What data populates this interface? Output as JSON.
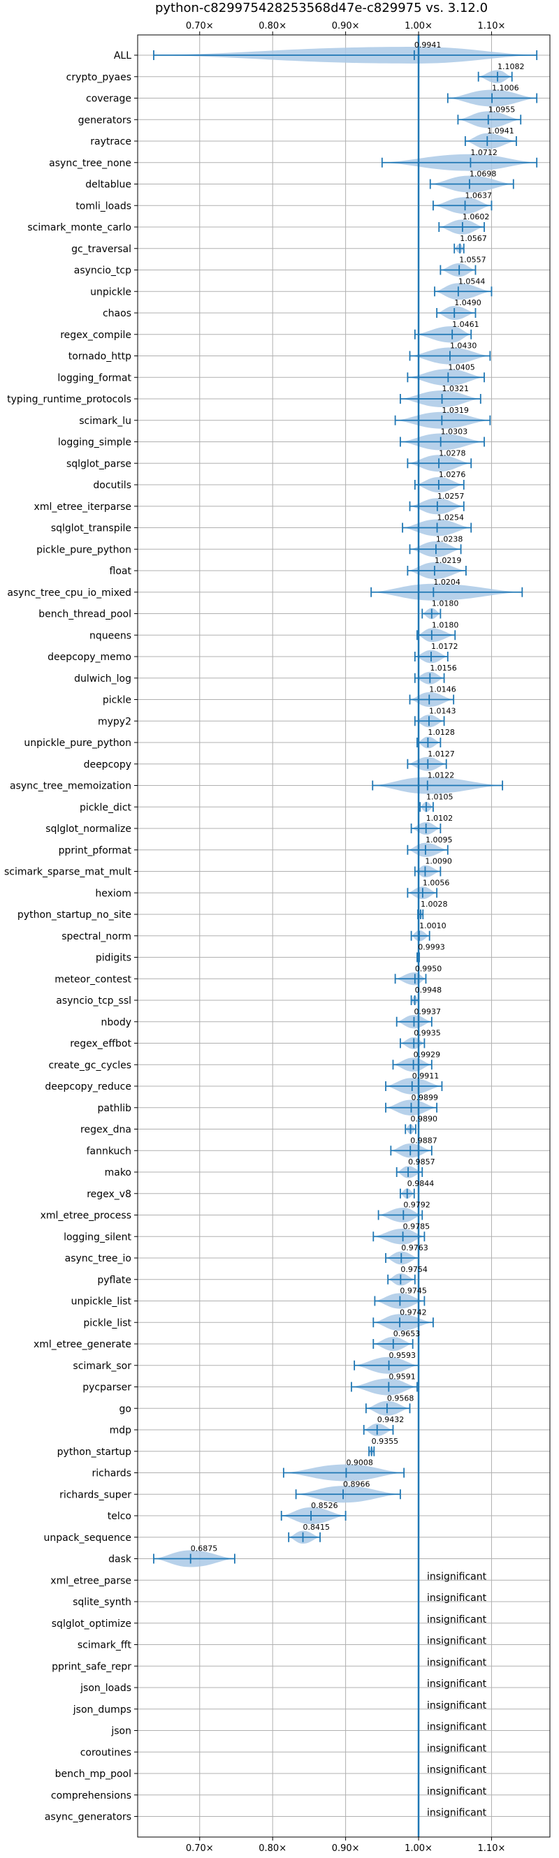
{
  "chart_data": {
    "type": "violin",
    "title": "python-c829975428253568d47e-c829975 vs. 3.12.0",
    "x_ticks": [
      0.7,
      0.8,
      0.9,
      1.0,
      1.1
    ],
    "x_tick_labels": [
      "0.70×",
      "0.80×",
      "0.90×",
      "1.00×",
      "1.10×"
    ],
    "xlim": [
      0.615,
      1.18
    ],
    "reference_line": 1.0,
    "grid": true,
    "colors": {
      "violin": "#aac9e6",
      "whisker": "#1f77b4",
      "reference": "#1f77b4"
    },
    "insignificant_text": "insignificant",
    "benchmarks": [
      {
        "name": "ALL",
        "value": 0.9941,
        "label": "0.9941",
        "min": 0.637,
        "max": 1.162
      },
      {
        "name": "crypto_pyaes",
        "value": 1.1082,
        "label": "1.1082",
        "min": 1.082,
        "max": 1.128
      },
      {
        "name": "coverage",
        "value": 1.1006,
        "label": "1.1006",
        "min": 1.04,
        "max": 1.162
      },
      {
        "name": "generators",
        "value": 1.0955,
        "label": "1.0955",
        "min": 1.054,
        "max": 1.14
      },
      {
        "name": "raytrace",
        "value": 1.0941,
        "label": "1.0941",
        "min": 1.064,
        "max": 1.134
      },
      {
        "name": "async_tree_none",
        "value": 1.0712,
        "label": "1.0712",
        "min": 0.95,
        "max": 1.162
      },
      {
        "name": "deltablue",
        "value": 1.0698,
        "label": "1.0698",
        "min": 1.016,
        "max": 1.13
      },
      {
        "name": "tomli_loads",
        "value": 1.0637,
        "label": "1.0637",
        "min": 1.02,
        "max": 1.1
      },
      {
        "name": "scimark_monte_carlo",
        "value": 1.0602,
        "label": "1.0602",
        "min": 1.028,
        "max": 1.09
      },
      {
        "name": "gc_traversal",
        "value": 1.0567,
        "label": "1.0567",
        "min": 1.049,
        "max": 1.062
      },
      {
        "name": "asyncio_tcp",
        "value": 1.0557,
        "label": "1.0557",
        "min": 1.03,
        "max": 1.078
      },
      {
        "name": "unpickle",
        "value": 1.0544,
        "label": "1.0544",
        "min": 1.022,
        "max": 1.1
      },
      {
        "name": "chaos",
        "value": 1.049,
        "label": "1.0490",
        "min": 1.025,
        "max": 1.078
      },
      {
        "name": "regex_compile",
        "value": 1.0461,
        "label": "1.0461",
        "min": 0.995,
        "max": 1.072
      },
      {
        "name": "tornado_http",
        "value": 1.043,
        "label": "1.0430",
        "min": 0.988,
        "max": 1.098
      },
      {
        "name": "logging_format",
        "value": 1.0405,
        "label": "1.0405",
        "min": 0.985,
        "max": 1.09
      },
      {
        "name": "typing_runtime_protocols",
        "value": 1.0321,
        "label": "1.0321",
        "min": 0.975,
        "max": 1.085
      },
      {
        "name": "scimark_lu",
        "value": 1.0319,
        "label": "1.0319",
        "min": 0.968,
        "max": 1.098
      },
      {
        "name": "logging_simple",
        "value": 1.0303,
        "label": "1.0303",
        "min": 0.975,
        "max": 1.09
      },
      {
        "name": "sqlglot_parse",
        "value": 1.0278,
        "label": "1.0278",
        "min": 0.985,
        "max": 1.072
      },
      {
        "name": "docutils",
        "value": 1.0276,
        "label": "1.0276",
        "min": 0.995,
        "max": 1.062
      },
      {
        "name": "xml_etree_iterparse",
        "value": 1.0257,
        "label": "1.0257",
        "min": 0.988,
        "max": 1.062
      },
      {
        "name": "sqlglot_transpile",
        "value": 1.0254,
        "label": "1.0254",
        "min": 0.978,
        "max": 1.072
      },
      {
        "name": "pickle_pure_python",
        "value": 1.0238,
        "label": "1.0238",
        "min": 0.988,
        "max": 1.058
      },
      {
        "name": "float",
        "value": 1.0219,
        "label": "1.0219",
        "min": 0.985,
        "max": 1.065
      },
      {
        "name": "async_tree_cpu_io_mixed",
        "value": 1.0204,
        "label": "1.0204",
        "min": 0.935,
        "max": 1.142
      },
      {
        "name": "bench_thread_pool",
        "value": 1.018,
        "label": "1.0180",
        "min": 1.005,
        "max": 1.03
      },
      {
        "name": "nqueens",
        "value": 1.018,
        "label": "1.0180",
        "min": 0.998,
        "max": 1.05
      },
      {
        "name": "deepcopy_memo",
        "value": 1.0172,
        "label": "1.0172",
        "min": 0.995,
        "max": 1.04
      },
      {
        "name": "dulwich_log",
        "value": 1.0156,
        "label": "1.0156",
        "min": 0.995,
        "max": 1.035
      },
      {
        "name": "pickle",
        "value": 1.0146,
        "label": "1.0146",
        "min": 0.988,
        "max": 1.048
      },
      {
        "name": "mypy2",
        "value": 1.0143,
        "label": "1.0143",
        "min": 0.995,
        "max": 1.035
      },
      {
        "name": "unpickle_pure_python",
        "value": 1.0128,
        "label": "1.0128",
        "min": 0.998,
        "max": 1.03
      },
      {
        "name": "deepcopy",
        "value": 1.0127,
        "label": "1.0127",
        "min": 0.985,
        "max": 1.038
      },
      {
        "name": "async_tree_memoization",
        "value": 1.0122,
        "label": "1.0122",
        "min": 0.937,
        "max": 1.115
      },
      {
        "name": "pickle_dict",
        "value": 1.0105,
        "label": "1.0105",
        "min": 1.002,
        "max": 1.02
      },
      {
        "name": "sqlglot_normalize",
        "value": 1.0102,
        "label": "1.0102",
        "min": 0.99,
        "max": 1.03
      },
      {
        "name": "pprint_pformat",
        "value": 1.0095,
        "label": "1.0095",
        "min": 0.985,
        "max": 1.04
      },
      {
        "name": "scimark_sparse_mat_mult",
        "value": 1.009,
        "label": "1.0090",
        "min": 0.995,
        "max": 1.03
      },
      {
        "name": "hexiom",
        "value": 1.0056,
        "label": "1.0056",
        "min": 0.985,
        "max": 1.025
      },
      {
        "name": "python_startup_no_site",
        "value": 1.0028,
        "label": "1.0028",
        "min": 0.999,
        "max": 1.006
      },
      {
        "name": "spectral_norm",
        "value": 1.001,
        "label": "1.0010",
        "min": 0.99,
        "max": 1.015
      },
      {
        "name": "pidigits",
        "value": 0.9993,
        "label": "0.9993",
        "min": 0.998,
        "max": 1.001
      },
      {
        "name": "meteor_contest",
        "value": 0.995,
        "label": "0.9950",
        "min": 0.968,
        "max": 1.01
      },
      {
        "name": "asyncio_tcp_ssl",
        "value": 0.9948,
        "label": "0.9948",
        "min": 0.99,
        "max": 1.0
      },
      {
        "name": "nbody",
        "value": 0.9937,
        "label": "0.9937",
        "min": 0.97,
        "max": 1.018
      },
      {
        "name": "regex_effbot",
        "value": 0.9935,
        "label": "0.9935",
        "min": 0.975,
        "max": 1.008
      },
      {
        "name": "create_gc_cycles",
        "value": 0.9929,
        "label": "0.9929",
        "min": 0.965,
        "max": 1.018
      },
      {
        "name": "deepcopy_reduce",
        "value": 0.9911,
        "label": "0.9911",
        "min": 0.955,
        "max": 1.032
      },
      {
        "name": "pathlib",
        "value": 0.9899,
        "label": "0.9899",
        "min": 0.955,
        "max": 1.025
      },
      {
        "name": "regex_dna",
        "value": 0.989,
        "label": "0.9890",
        "min": 0.982,
        "max": 0.996
      },
      {
        "name": "fannkuch",
        "value": 0.9887,
        "label": "0.9887",
        "min": 0.962,
        "max": 1.018
      },
      {
        "name": "mako",
        "value": 0.9857,
        "label": "0.9857",
        "min": 0.97,
        "max": 1.005
      },
      {
        "name": "regex_v8",
        "value": 0.9844,
        "label": "0.9844",
        "min": 0.975,
        "max": 0.994
      },
      {
        "name": "xml_etree_process",
        "value": 0.9792,
        "label": "0.9792",
        "min": 0.945,
        "max": 1.005
      },
      {
        "name": "logging_silent",
        "value": 0.9785,
        "label": "0.9785",
        "min": 0.938,
        "max": 1.008
      },
      {
        "name": "async_tree_io",
        "value": 0.9763,
        "label": "0.9763",
        "min": 0.955,
        "max": 1.0
      },
      {
        "name": "pyflate",
        "value": 0.9754,
        "label": "0.9754",
        "min": 0.958,
        "max": 0.995
      },
      {
        "name": "unpickle_list",
        "value": 0.9745,
        "label": "0.9745",
        "min": 0.94,
        "max": 1.008
      },
      {
        "name": "pickle_list",
        "value": 0.9742,
        "label": "0.9742",
        "min": 0.938,
        "max": 1.02
      },
      {
        "name": "xml_etree_generate",
        "value": 0.9653,
        "label": "0.9653",
        "min": 0.938,
        "max": 0.992
      },
      {
        "name": "scimark_sor",
        "value": 0.9593,
        "label": "0.9593",
        "min": 0.912,
        "max": 1.0
      },
      {
        "name": "pycparser",
        "value": 0.9591,
        "label": "0.9591",
        "min": 0.908,
        "max": 0.998
      },
      {
        "name": "go",
        "value": 0.9568,
        "label": "0.9568",
        "min": 0.928,
        "max": 0.988
      },
      {
        "name": "mdp",
        "value": 0.9432,
        "label": "0.9432",
        "min": 0.925,
        "max": 0.965
      },
      {
        "name": "python_startup",
        "value": 0.9355,
        "label": "0.9355",
        "min": 0.932,
        "max": 0.939
      },
      {
        "name": "richards",
        "value": 0.9008,
        "label": "0.9008",
        "min": 0.815,
        "max": 0.98
      },
      {
        "name": "richards_super",
        "value": 0.8966,
        "label": "0.8966",
        "min": 0.832,
        "max": 0.975
      },
      {
        "name": "telco",
        "value": 0.8526,
        "label": "0.8526",
        "min": 0.812,
        "max": 0.9
      },
      {
        "name": "unpack_sequence",
        "value": 0.8415,
        "label": "0.8415",
        "min": 0.822,
        "max": 0.865
      },
      {
        "name": "dask",
        "value": 0.6875,
        "label": "0.6875",
        "min": 0.637,
        "max": 0.748
      },
      {
        "name": "xml_etree_parse",
        "insignificant": true
      },
      {
        "name": "sqlite_synth",
        "insignificant": true
      },
      {
        "name": "sqlglot_optimize",
        "insignificant": true
      },
      {
        "name": "scimark_fft",
        "insignificant": true
      },
      {
        "name": "pprint_safe_repr",
        "insignificant": true
      },
      {
        "name": "json_loads",
        "insignificant": true
      },
      {
        "name": "json_dumps",
        "insignificant": true
      },
      {
        "name": "json",
        "insignificant": true
      },
      {
        "name": "coroutines",
        "insignificant": true
      },
      {
        "name": "bench_mp_pool",
        "insignificant": true
      },
      {
        "name": "comprehensions",
        "insignificant": true
      },
      {
        "name": "async_generators",
        "insignificant": true
      }
    ]
  }
}
